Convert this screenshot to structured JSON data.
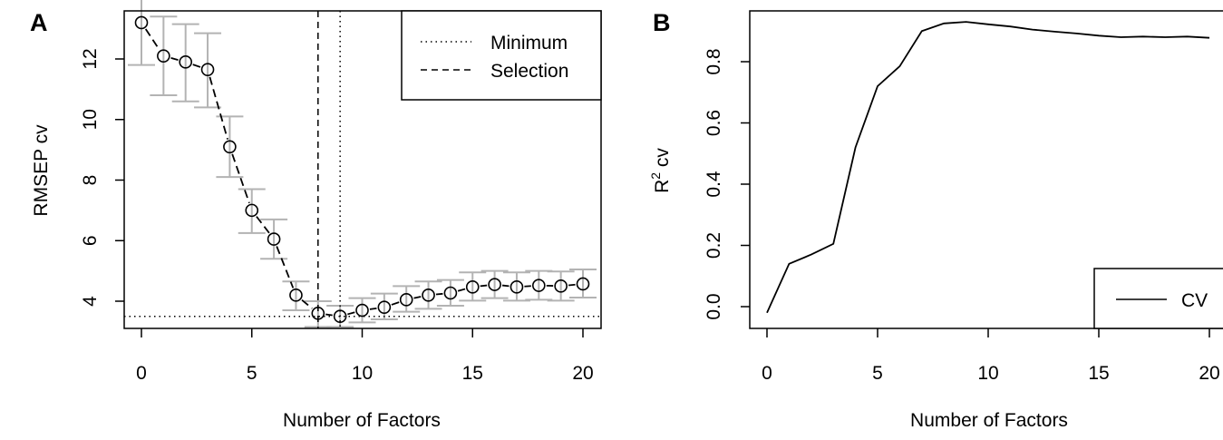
{
  "chart_data": [
    {
      "panel": "A",
      "type": "line",
      "xlabel": "Number of Factors",
      "ylabel": "RMSEP cv",
      "x": [
        0,
        1,
        2,
        3,
        4,
        5,
        6,
        7,
        8,
        9,
        10,
        11,
        12,
        13,
        14,
        15,
        16,
        17,
        18,
        19,
        20
      ],
      "series": [
        {
          "values": [
            13.2,
            12.1,
            11.9,
            11.65,
            9.1,
            7.0,
            6.05,
            4.2,
            3.6,
            3.5,
            3.7,
            3.8,
            4.05,
            4.2,
            4.27,
            4.47,
            4.55,
            4.47,
            4.52,
            4.5,
            4.57
          ],
          "error_upper": [
            14.55,
            13.4,
            13.15,
            12.85,
            10.1,
            7.7,
            6.7,
            4.65,
            4.0,
            3.85,
            4.1,
            4.25,
            4.5,
            4.65,
            4.7,
            4.95,
            5.0,
            4.95,
            5.0,
            4.98,
            5.05
          ],
          "error_lower": [
            11.8,
            10.8,
            10.6,
            10.4,
            8.1,
            6.25,
            5.4,
            3.7,
            3.15,
            3.15,
            3.3,
            3.4,
            3.65,
            3.75,
            3.85,
            4.02,
            4.1,
            4.02,
            4.05,
            4.02,
            4.12
          ]
        }
      ],
      "xlim": [
        0,
        20
      ],
      "ylim": [
        3.1,
        13.7
      ],
      "xticks": [
        0,
        5,
        10,
        15,
        20
      ],
      "yticks": [
        4,
        6,
        8,
        10,
        12
      ],
      "reference_lines": {
        "minimum": {
          "x": 9,
          "y": 3.5
        },
        "selection": {
          "x": 8
        }
      },
      "legend": {
        "position": "top-right",
        "entries": [
          {
            "label": "Minimum",
            "style": "dotted"
          },
          {
            "label": "Selection",
            "style": "dashed"
          }
        ]
      }
    },
    {
      "panel": "B",
      "type": "line",
      "xlabel": "Number of Factors",
      "ylabel": "R",
      "ylabel_sup": "2",
      "ylabel_suffix": " cv",
      "x": [
        0,
        1,
        2,
        3,
        4,
        5,
        6,
        7,
        8,
        9,
        10,
        11,
        12,
        13,
        14,
        15,
        16,
        17,
        18,
        19,
        20
      ],
      "series": [
        {
          "name": "CV",
          "values": [
            -0.02,
            0.14,
            0.17,
            0.205,
            0.52,
            0.72,
            0.785,
            0.9,
            0.925,
            0.93,
            0.922,
            0.915,
            0.905,
            0.898,
            0.892,
            0.885,
            0.88,
            0.882,
            0.88,
            0.882,
            0.878
          ]
        }
      ],
      "xlim": [
        0,
        20
      ],
      "ylim": [
        -0.03,
        0.96
      ],
      "xticks": [
        0,
        5,
        10,
        15,
        20
      ],
      "yticks": [
        0.0,
        0.2,
        0.4,
        0.6,
        0.8
      ],
      "ytick_labels": [
        "0.0",
        "0.2",
        "0.4",
        "0.6",
        "0.8"
      ],
      "legend": {
        "position": "bottom-right",
        "entries": [
          {
            "label": "CV",
            "style": "solid"
          }
        ]
      }
    }
  ],
  "errorbar_color": "#b3b3b3"
}
